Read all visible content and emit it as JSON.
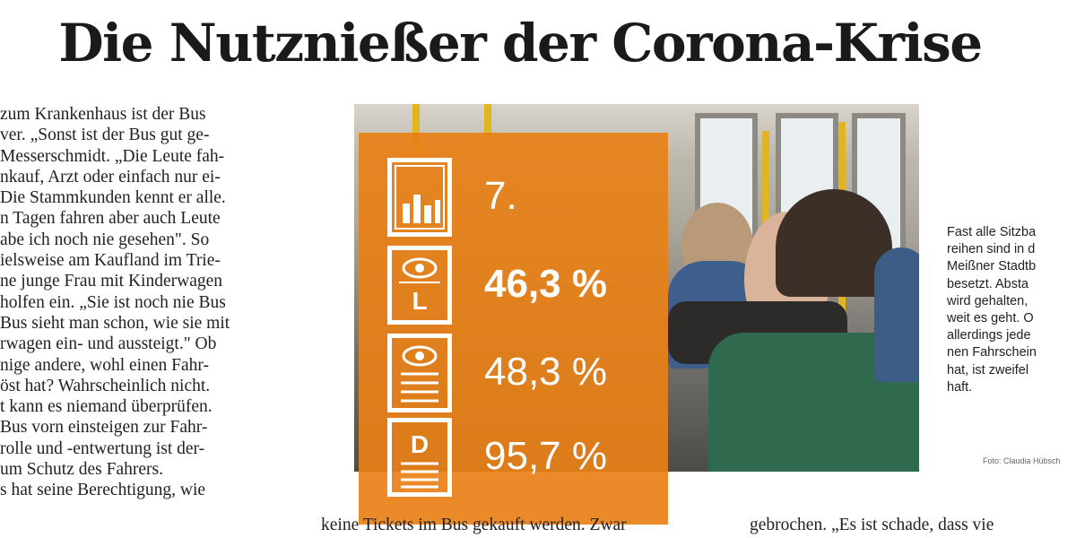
{
  "headline": "Die Nutznießer der Corona-Krise",
  "left_column": {
    "lines": [
      "zum Krankenhaus ist der Bus",
      "ver. „Sonst ist der Bus gut ge-",
      "Messerschmidt. „Die Leute fah-",
      "nkauf, Arzt oder einfach nur ei-",
      "Die Stammkunden kennt er alle.",
      "n Tagen fahren aber auch Leute",
      "abe ich noch nie gesehen\". So",
      "ielsweise am Kaufland im Trie-",
      "ne junge Frau mit Kinderwagen",
      "holfen ein. „Sie ist noch nie Bus",
      "Bus sieht man schon, wie sie mit",
      "rwagen ein- und aussteigt.\" Ob",
      "nige andere, wohl einen Fahr-",
      "öst hat? Wahrscheinlich nicht.",
      "t kann es niemand überprüfen.",
      "Bus vorn einsteigen zur Fahr-",
      "rolle und -entwertung ist der-",
      "um Schutz des Fahrers.",
      "s hat seine Berechtigung, wie"
    ]
  },
  "infographic": {
    "stats": [
      {
        "icon": "bar-chart-icon",
        "value": "7."
      },
      {
        "icon": "eye-l-icon",
        "value": "46,3 %"
      },
      {
        "icon": "eye-document-icon",
        "value": "48,3 %"
      },
      {
        "icon": "document-d-icon",
        "value": "95,7 %"
      }
    ],
    "icon_letter_l": "L",
    "icon_letter_d": "D",
    "accent_color": "#e88016"
  },
  "caption": {
    "lines": [
      "Fast alle Sitzba",
      "reihen sind in d",
      "Meißner Stadtb",
      "besetzt. Absta",
      "wird gehalten,",
      "weit es geht. O",
      "allerdings jede",
      "nen Fahrschein",
      "hat, ist zweifel",
      "haft."
    ],
    "credit": "Foto: Claudia Hübsch"
  },
  "bottom_middle": "keine Tickets im Bus gekauft werden. Zwar",
  "bottom_right": "gebrochen. „Es ist schade, dass vie"
}
